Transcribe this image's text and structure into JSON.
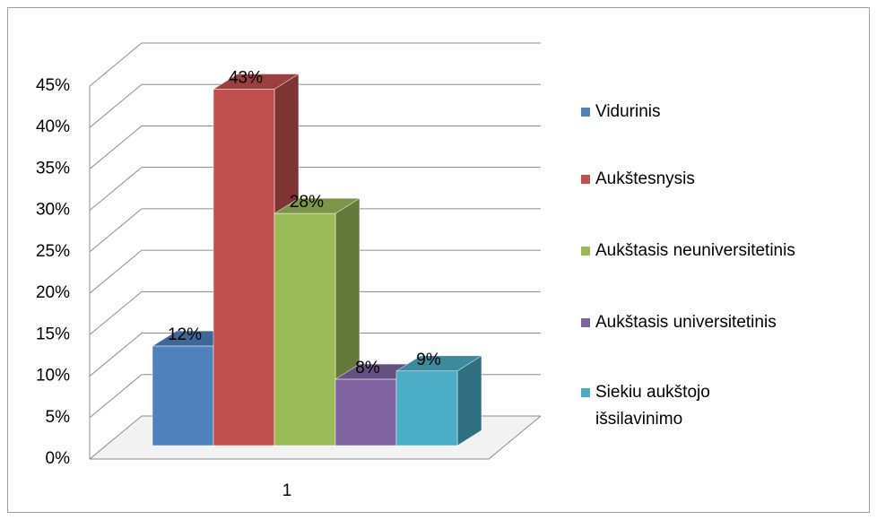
{
  "chart_data": {
    "type": "bar3d",
    "categories": [
      "1"
    ],
    "series": [
      {
        "name": "Vidurinis",
        "color": "#4f81bd",
        "values": [
          12
        ],
        "value_labels": [
          "12%"
        ]
      },
      {
        "name": "Aukštesnysis",
        "color": "#c0504d",
        "values": [
          43
        ],
        "value_labels": [
          "43%"
        ]
      },
      {
        "name": "Aukštasis neuniversitetinis",
        "color": "#9bbb59",
        "values": [
          28
        ],
        "value_labels": [
          "28%"
        ]
      },
      {
        "name": "Aukštasis universitetinis",
        "color": "#8064a2",
        "values": [
          8
        ],
        "value_labels": [
          "8%"
        ]
      },
      {
        "name": "Siekiu aukštojo\nišsilavinimo",
        "color": "#4bacc6",
        "values": [
          9
        ],
        "value_labels": [
          "9%"
        ]
      }
    ],
    "ylim": [
      0,
      45
    ],
    "yticks": [
      {
        "value": 0,
        "label": "0%"
      },
      {
        "value": 5,
        "label": "5%"
      },
      {
        "value": 10,
        "label": "10%"
      },
      {
        "value": 15,
        "label": "15%"
      },
      {
        "value": 20,
        "label": "20%"
      },
      {
        "value": 25,
        "label": "25%"
      },
      {
        "value": 30,
        "label": "30%"
      },
      {
        "value": 35,
        "label": "35%"
      },
      {
        "value": 40,
        "label": "40%"
      },
      {
        "value": 45,
        "label": "45%"
      }
    ],
    "grid": true,
    "legend": "right"
  }
}
